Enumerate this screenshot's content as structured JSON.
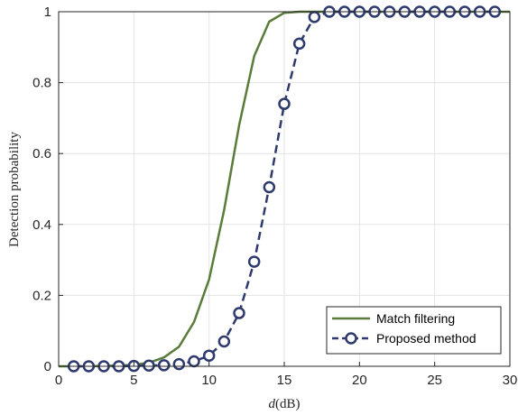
{
  "chart_data": {
    "type": "line",
    "xlabel_italic": "d",
    "xlabel_unit": "(dB)",
    "ylabel": "Detection probability",
    "xlim": [
      0,
      30
    ],
    "ylim": [
      0,
      1
    ],
    "xticks": [
      0,
      5,
      10,
      15,
      20,
      25,
      30
    ],
    "yticks": [
      0,
      0.2,
      0.4,
      0.6,
      0.8,
      1
    ],
    "ytick_labels": [
      "0",
      "0.2",
      "0.4",
      "0.6",
      "0.8",
      "1"
    ],
    "grid": true,
    "legend_position": "bottom-right",
    "series": [
      {
        "name": "Match filtering",
        "color": "#5a7b3a",
        "style": "solid",
        "marker": "none",
        "x": [
          0,
          1,
          2,
          3,
          4,
          5,
          6,
          7,
          8,
          9,
          10,
          11,
          12,
          13,
          14,
          15,
          16,
          17,
          18,
          19,
          20,
          21,
          22,
          23,
          24,
          25,
          26,
          27,
          28,
          29,
          30
        ],
        "y": [
          0,
          0,
          0,
          0.001,
          0.002,
          0.004,
          0.01,
          0.025,
          0.055,
          0.125,
          0.245,
          0.44,
          0.68,
          0.875,
          0.972,
          0.997,
          1,
          1,
          1,
          1,
          1,
          1,
          1,
          1,
          1,
          1,
          1,
          1,
          1,
          1,
          1
        ]
      },
      {
        "name": "Proposed method",
        "color": "#2e3a6e",
        "style": "dashed",
        "marker": "circle",
        "x": [
          1,
          2,
          3,
          4,
          5,
          6,
          7,
          8,
          9,
          10,
          11,
          12,
          13,
          14,
          15,
          16,
          17,
          18,
          19,
          20,
          21,
          22,
          23,
          24,
          25,
          26,
          27,
          28,
          29
        ],
        "y": [
          0,
          0,
          0,
          0,
          0.001,
          0.002,
          0.003,
          0.006,
          0.014,
          0.03,
          0.07,
          0.15,
          0.295,
          0.505,
          0.74,
          0.91,
          0.985,
          1,
          1,
          1,
          1,
          1,
          1,
          1,
          1,
          1,
          1,
          1,
          1
        ]
      }
    ]
  }
}
